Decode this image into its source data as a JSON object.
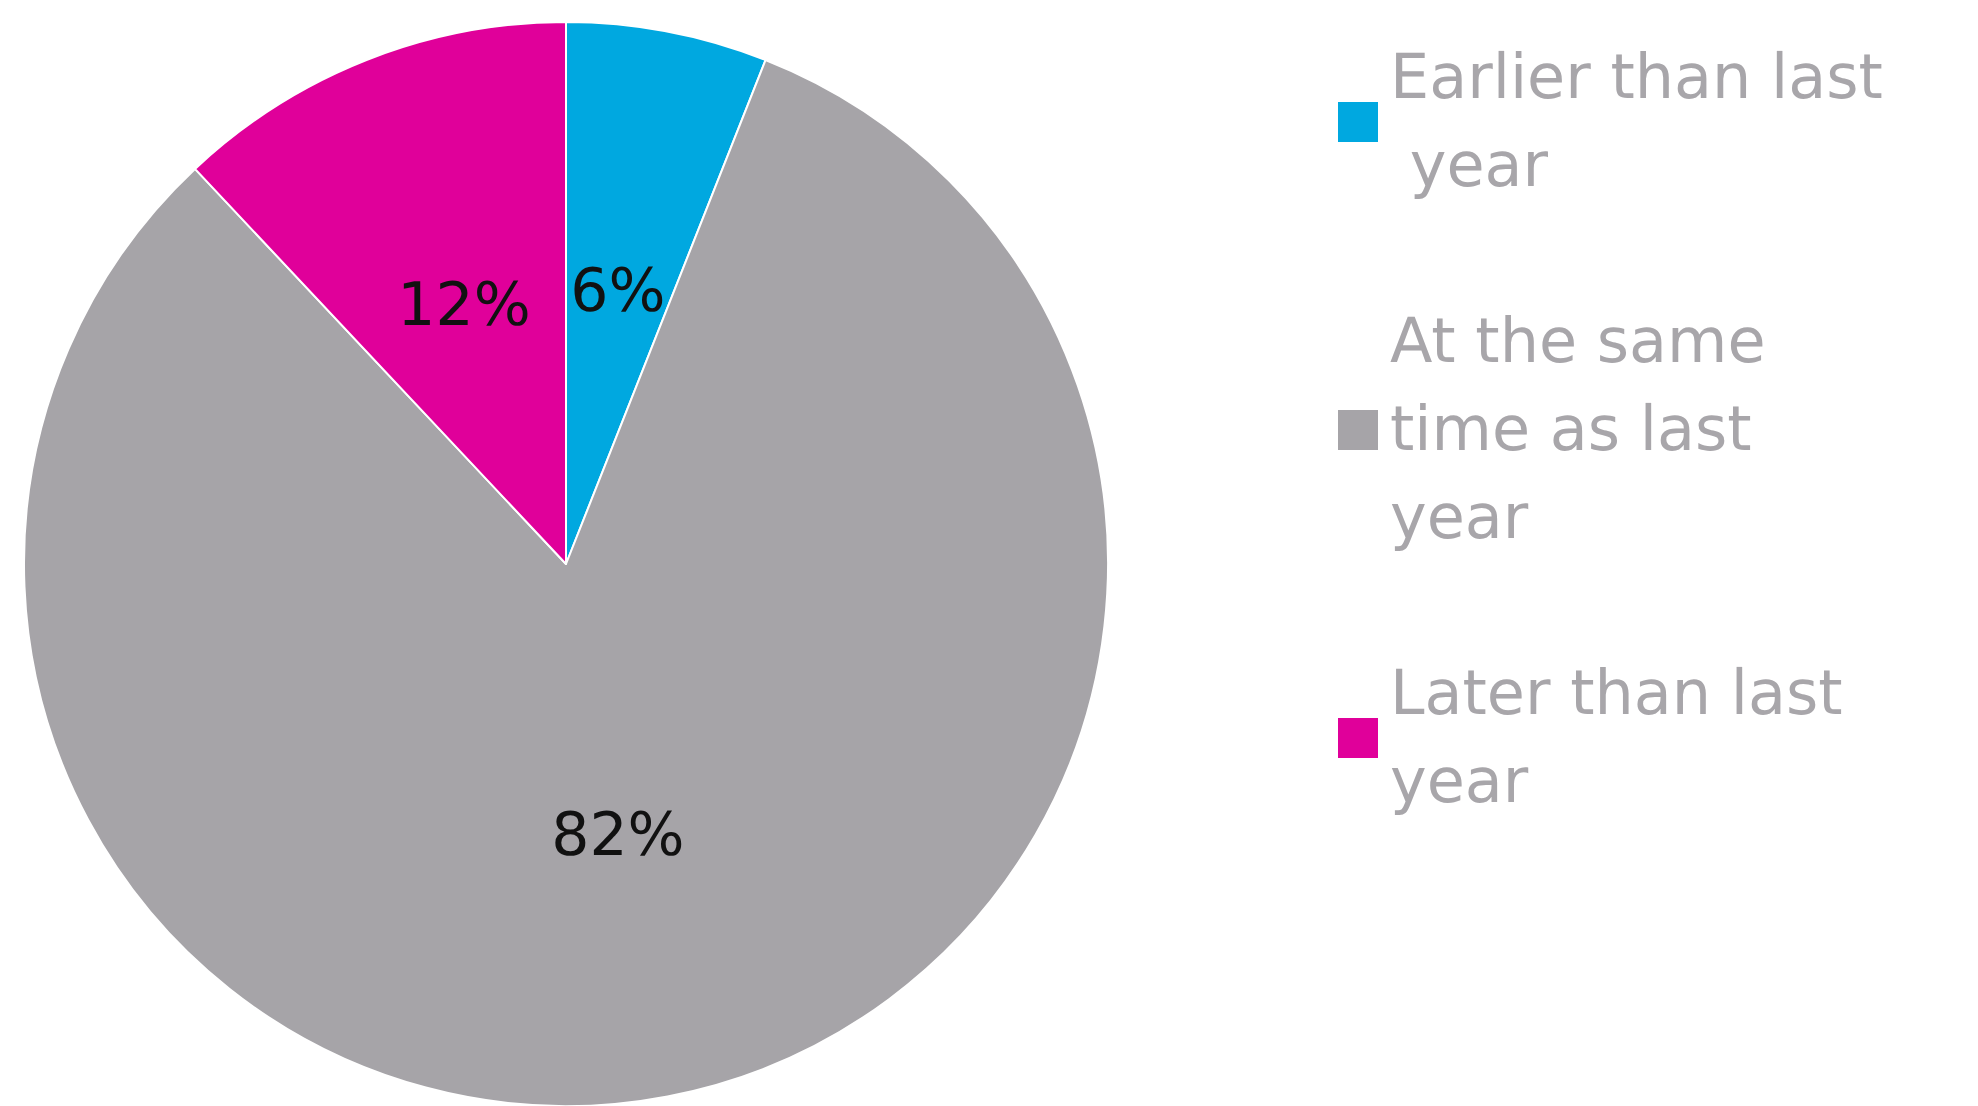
{
  "chart_data": {
    "type": "pie",
    "categories": [
      "Earlier than last year",
      "At the same time as last year",
      "Later than last year"
    ],
    "values": [
      6,
      82,
      12
    ],
    "colors": [
      "#00a8e0",
      "#a6a4a8",
      "#e0009a"
    ],
    "value_labels": [
      "6%",
      "82%",
      "12%"
    ],
    "legend": "right"
  }
}
